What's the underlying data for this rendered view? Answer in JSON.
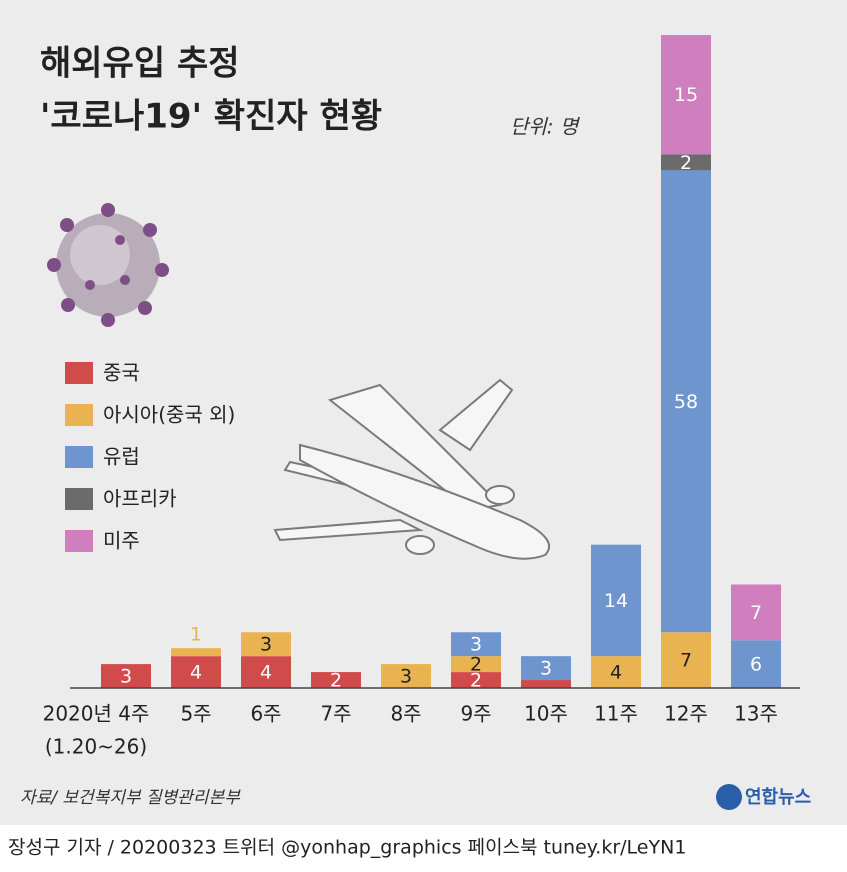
{
  "chart_data": {
    "type": "stacked-bar",
    "title_lines": [
      "해외유입 추정",
      "'코로나19' 확진자 현황"
    ],
    "unit": "단위: 명",
    "categories": [
      "2020년 4주",
      "5주",
      "6주",
      "7주",
      "8주",
      "9주",
      "10주",
      "11주",
      "12주",
      "13주"
    ],
    "category_note": "(1.20~26)",
    "series": [
      {
        "name": "중국",
        "color": "#d24b4b",
        "text_color": "#ffffff",
        "values": [
          3,
          4,
          4,
          2,
          null,
          2,
          1,
          null,
          null,
          null
        ]
      },
      {
        "name": "아시아(중국 외)",
        "color": "#e8b350",
        "text_color": "#222222",
        "values": [
          null,
          1,
          3,
          null,
          3,
          2,
          null,
          4,
          7,
          null
        ]
      },
      {
        "name": "유럽",
        "color": "#6f95cf",
        "text_color": "#ffffff",
        "values": [
          null,
          null,
          null,
          null,
          null,
          3,
          3,
          14,
          58,
          6
        ]
      },
      {
        "name": "아프리카",
        "color": "#6b6b6b",
        "text_color": "#ffffff",
        "values": [
          null,
          null,
          null,
          null,
          null,
          null,
          null,
          null,
          2,
          null
        ]
      },
      {
        "name": "미주",
        "color": "#d07fbe",
        "text_color": "#ffffff",
        "values": [
          null,
          null,
          null,
          null,
          null,
          null,
          null,
          null,
          15,
          7
        ]
      }
    ],
    "ylim": [
      0,
      82
    ],
    "source": "자료/ 보건복지부 질병관리본부",
    "logo": "연합뉴스",
    "footer": "장성구 기자 / 20200323  트위터 @yonhap_graphics  페이스북 tuney.kr/LeYN1"
  }
}
